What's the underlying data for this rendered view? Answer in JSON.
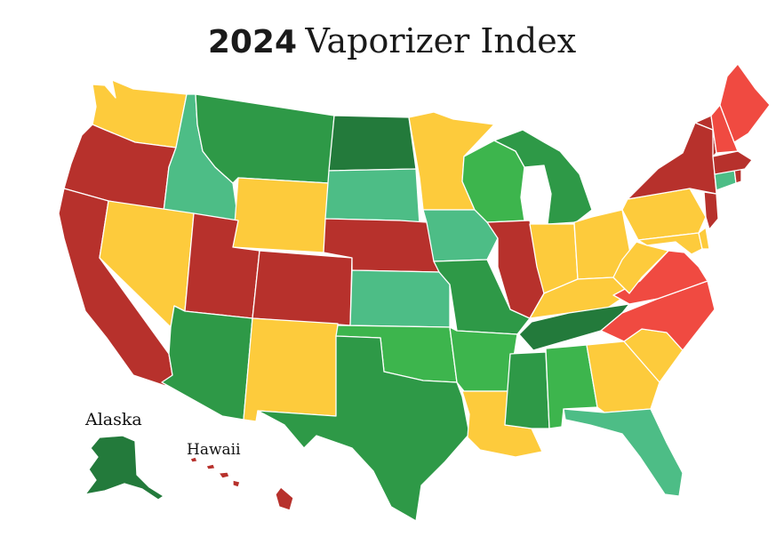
{
  "title": {
    "year": "2024",
    "rest": "Vaporizer Index"
  },
  "insets": {
    "alaska": "Alaska",
    "hawaii": "Hawaii"
  },
  "colors": {
    "dark_green": "#237a3b",
    "green": "#2e9947",
    "light_green": "#3db54d",
    "teal": "#4dbd86",
    "yellow": "#fdcb3c",
    "light_red": "#f04a41",
    "dark_red": "#b7312c"
  },
  "states": [
    {
      "abbr": "WA",
      "tier": "yellow"
    },
    {
      "abbr": "OR",
      "tier": "dark_red"
    },
    {
      "abbr": "CA",
      "tier": "dark_red"
    },
    {
      "abbr": "ID",
      "tier": "teal"
    },
    {
      "abbr": "NV",
      "tier": "yellow"
    },
    {
      "abbr": "MT",
      "tier": "green"
    },
    {
      "abbr": "WY",
      "tier": "yellow"
    },
    {
      "abbr": "UT",
      "tier": "dark_red"
    },
    {
      "abbr": "AZ",
      "tier": "green"
    },
    {
      "abbr": "CO",
      "tier": "dark_red"
    },
    {
      "abbr": "NM",
      "tier": "yellow"
    },
    {
      "abbr": "ND",
      "tier": "dark_green"
    },
    {
      "abbr": "SD",
      "tier": "teal"
    },
    {
      "abbr": "NE",
      "tier": "dark_red"
    },
    {
      "abbr": "KS",
      "tier": "teal"
    },
    {
      "abbr": "OK",
      "tier": "light_green"
    },
    {
      "abbr": "TX",
      "tier": "green"
    },
    {
      "abbr": "MN",
      "tier": "yellow"
    },
    {
      "abbr": "IA",
      "tier": "teal"
    },
    {
      "abbr": "MO",
      "tier": "green"
    },
    {
      "abbr": "AR",
      "tier": "light_green"
    },
    {
      "abbr": "LA",
      "tier": "yellow"
    },
    {
      "abbr": "WI",
      "tier": "light_green"
    },
    {
      "abbr": "MI",
      "tier": "green"
    },
    {
      "abbr": "IL",
      "tier": "dark_red"
    },
    {
      "abbr": "IN",
      "tier": "yellow"
    },
    {
      "abbr": "OH",
      "tier": "yellow"
    },
    {
      "abbr": "KY",
      "tier": "yellow"
    },
    {
      "abbr": "TN",
      "tier": "dark_green"
    },
    {
      "abbr": "MS",
      "tier": "green"
    },
    {
      "abbr": "AL",
      "tier": "light_green"
    },
    {
      "abbr": "GA",
      "tier": "yellow"
    },
    {
      "abbr": "FL",
      "tier": "teal"
    },
    {
      "abbr": "SC",
      "tier": "yellow"
    },
    {
      "abbr": "NC",
      "tier": "light_red"
    },
    {
      "abbr": "VA",
      "tier": "light_red"
    },
    {
      "abbr": "WV",
      "tier": "yellow"
    },
    {
      "abbr": "PA",
      "tier": "yellow"
    },
    {
      "abbr": "NY",
      "tier": "dark_red"
    },
    {
      "abbr": "VT",
      "tier": "dark_red"
    },
    {
      "abbr": "NH",
      "tier": "light_red"
    },
    {
      "abbr": "ME",
      "tier": "light_red"
    },
    {
      "abbr": "MA",
      "tier": "dark_red"
    },
    {
      "abbr": "RI",
      "tier": "dark_red"
    },
    {
      "abbr": "CT",
      "tier": "teal"
    },
    {
      "abbr": "NJ",
      "tier": "dark_red"
    },
    {
      "abbr": "DE",
      "tier": "yellow"
    },
    {
      "abbr": "MD",
      "tier": "yellow"
    },
    {
      "abbr": "AK",
      "tier": "dark_green"
    },
    {
      "abbr": "HI",
      "tier": "dark_red"
    }
  ]
}
